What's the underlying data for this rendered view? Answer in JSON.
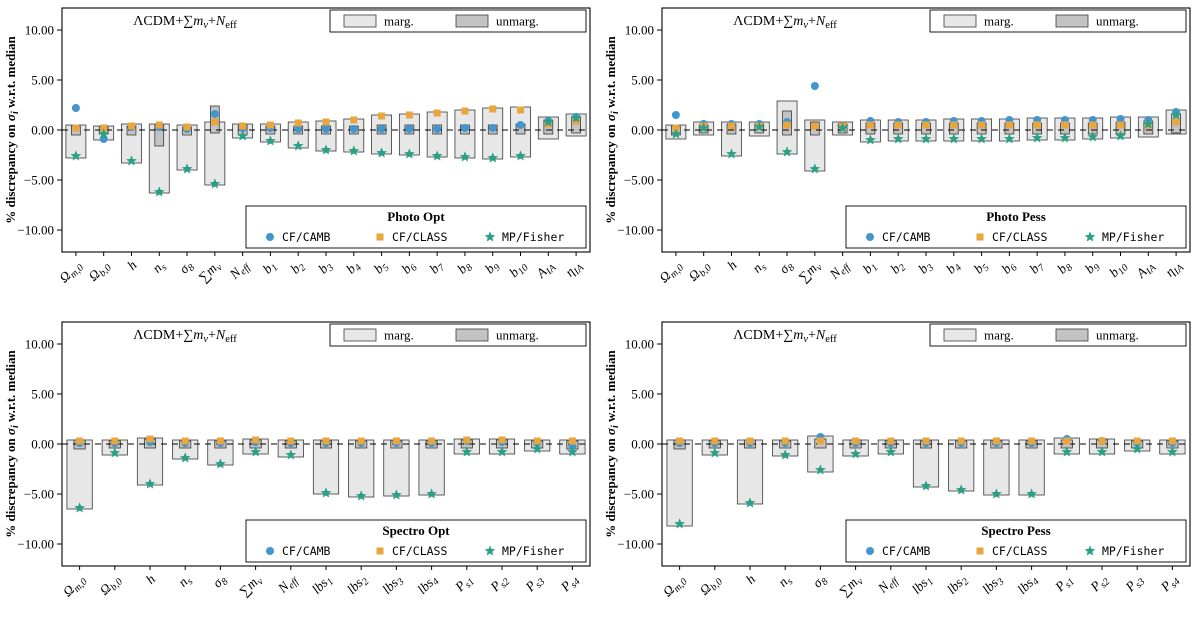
{
  "figure": {
    "background": "#ffffff",
    "model_label_segments": [
      {
        "t": "ΛCDM+"
      },
      {
        "t": "∑"
      },
      {
        "t": "m",
        "it": true
      },
      {
        "t": "ν",
        "sub": true,
        "it": true
      },
      {
        "t": "+"
      },
      {
        "t": "N",
        "it": true
      },
      {
        "t": "eff",
        "sub": true
      }
    ],
    "ylabel_segments": [
      {
        "t": "% discrepancy on "
      },
      {
        "t": "σ",
        "it": true
      },
      {
        "t": "i",
        "sub": true,
        "it": true
      },
      {
        "t": " w.r.t. median"
      }
    ],
    "legend_marg": "marg.",
    "legend_unmarg": "unmarg.",
    "series_legend": [
      {
        "name": "CF/CAMB",
        "marker": "circle",
        "color": "#4295cd"
      },
      {
        "name": "CF/CLASS",
        "marker": "square",
        "color": "#e9a63c"
      },
      {
        "name": "MP/Fisher",
        "marker": "star",
        "color": "#2aa187"
      }
    ],
    "colors": {
      "marg": "#e7e7e7",
      "unmarg": "#c3c3c3",
      "edge": "#3a3a3a",
      "axis": "#000000"
    }
  },
  "chart_data": [
    {
      "type": "bar",
      "title": "Photo Opt",
      "ylim": [
        -12.2,
        12.2
      ],
      "yticks": [
        10,
        5,
        0,
        -5,
        -10
      ],
      "categories": [
        "Ω_m,0",
        "Ω_b,0",
        "h",
        "n_s",
        "σ_8",
        "∑m_ν",
        "N_eff",
        "b_1",
        "b_2",
        "b_3",
        "b_4",
        "b_5",
        "b_6",
        "b_7",
        "b_8",
        "b_9",
        "b_10",
        "A_IA",
        "η_IA"
      ],
      "marg": [
        [
          -2.8,
          0.5
        ],
        [
          -1.0,
          0.4
        ],
        [
          -3.3,
          0.6
        ],
        [
          -6.3,
          0.6
        ],
        [
          -4.0,
          0.5
        ],
        [
          -5.5,
          0.8
        ],
        [
          -0.8,
          0.6
        ],
        [
          -1.2,
          0.6
        ],
        [
          -1.8,
          0.8
        ],
        [
          -2.1,
          0.9
        ],
        [
          -2.2,
          1.1
        ],
        [
          -2.4,
          1.5
        ],
        [
          -2.5,
          1.6
        ],
        [
          -2.7,
          1.8
        ],
        [
          -2.8,
          2.0
        ],
        [
          -2.9,
          2.2
        ],
        [
          -2.7,
          2.3
        ],
        [
          -0.9,
          1.3
        ],
        [
          -0.6,
          1.6
        ]
      ],
      "unmarg": [
        [
          -0.5,
          0.4
        ],
        [
          -0.4,
          0.3
        ],
        [
          -0.5,
          0.4
        ],
        [
          -1.6,
          0.5
        ],
        [
          -0.5,
          0.3
        ],
        [
          -0.3,
          2.4
        ],
        [
          -0.5,
          0.5
        ],
        [
          -0.4,
          0.4
        ],
        [
          -0.4,
          0.4
        ],
        [
          -0.4,
          0.4
        ],
        [
          -0.4,
          0.4
        ],
        [
          -0.4,
          0.5
        ],
        [
          -0.4,
          0.5
        ],
        [
          -0.4,
          0.5
        ],
        [
          -0.4,
          0.5
        ],
        [
          -0.4,
          0.5
        ],
        [
          -0.4,
          0.6
        ],
        [
          -0.4,
          1.0
        ],
        [
          -0.3,
          1.3
        ]
      ],
      "series": [
        {
          "name": "CF/CAMB",
          "values": [
            2.2,
            -0.9,
            0.3,
            0.3,
            0.1,
            1.6,
            0.2,
            0.2,
            0.1,
            0.1,
            0.1,
            0.1,
            0.1,
            0.1,
            0.2,
            0.2,
            0.5,
            0.9,
            1.3
          ]
        },
        {
          "name": "CF/CLASS",
          "values": [
            0.2,
            0.2,
            0.4,
            0.5,
            0.3,
            0.8,
            0.4,
            0.5,
            0.7,
            0.8,
            1.0,
            1.4,
            1.5,
            1.7,
            1.9,
            2.1,
            2.0,
            0.6,
            0.9
          ]
        },
        {
          "name": "MP/Fisher",
          "values": [
            -2.6,
            -0.4,
            -3.1,
            -6.2,
            -3.9,
            -5.4,
            -0.6,
            -1.1,
            -1.6,
            -2.0,
            -2.1,
            -2.3,
            -2.4,
            -2.6,
            -2.7,
            -2.8,
            -2.6,
            0.8,
            1.2
          ]
        }
      ]
    },
    {
      "type": "bar",
      "title": "Photo Pess",
      "ylim": [
        -12.2,
        12.2
      ],
      "yticks": [
        10,
        5,
        0,
        -5,
        -10
      ],
      "categories": [
        "Ω_m,0",
        "Ω_b,0",
        "h",
        "n_s",
        "σ_8",
        "∑m_ν",
        "N_eff",
        "b_1",
        "b_2",
        "b_3",
        "b_4",
        "b_5",
        "b_6",
        "b_7",
        "b_8",
        "b_9",
        "b_10",
        "A_IA",
        "η_IA"
      ],
      "marg": [
        [
          -0.9,
          0.5
        ],
        [
          -0.5,
          0.8
        ],
        [
          -2.6,
          0.8
        ],
        [
          -0.6,
          0.8
        ],
        [
          -2.4,
          2.9
        ],
        [
          -4.1,
          1.0
        ],
        [
          -0.5,
          0.8
        ],
        [
          -1.2,
          1.0
        ],
        [
          -1.1,
          1.0
        ],
        [
          -1.1,
          1.0
        ],
        [
          -1.1,
          1.1
        ],
        [
          -1.1,
          1.1
        ],
        [
          -1.1,
          1.1
        ],
        [
          -1.0,
          1.2
        ],
        [
          -1.0,
          1.2
        ],
        [
          -0.9,
          1.2
        ],
        [
          -0.8,
          1.3
        ],
        [
          -0.7,
          1.3
        ],
        [
          -0.4,
          2.0
        ]
      ],
      "unmarg": [
        [
          -0.5,
          0.4
        ],
        [
          -0.3,
          0.5
        ],
        [
          -0.4,
          0.6
        ],
        [
          -0.3,
          0.6
        ],
        [
          -0.5,
          1.9
        ],
        [
          -0.5,
          0.8
        ],
        [
          -0.3,
          0.6
        ],
        [
          -0.4,
          0.7
        ],
        [
          -0.4,
          0.7
        ],
        [
          -0.4,
          0.7
        ],
        [
          -0.4,
          0.7
        ],
        [
          -0.4,
          0.7
        ],
        [
          -0.4,
          0.7
        ],
        [
          -0.4,
          0.7
        ],
        [
          -0.4,
          0.7
        ],
        [
          -0.4,
          0.7
        ],
        [
          -0.4,
          0.8
        ],
        [
          -0.4,
          0.9
        ],
        [
          -0.3,
          1.6
        ]
      ],
      "series": [
        {
          "name": "CF/CAMB",
          "values": [
            1.5,
            0.6,
            0.6,
            0.6,
            0.8,
            4.4,
            0.4,
            0.9,
            0.8,
            0.8,
            0.9,
            0.9,
            1.0,
            1.0,
            1.0,
            1.0,
            1.1,
            1.0,
            1.8
          ]
        },
        {
          "name": "CF/CLASS",
          "values": [
            0.2,
            0.4,
            0.4,
            0.4,
            0.5,
            0.4,
            0.4,
            0.5,
            0.5,
            0.5,
            0.5,
            0.5,
            0.5,
            0.5,
            0.5,
            0.5,
            0.5,
            0.5,
            0.8
          ]
        },
        {
          "name": "MP/Fisher",
          "values": [
            -0.4,
            0.2,
            -2.4,
            0.3,
            -2.2,
            -3.9,
            0.2,
            -1.0,
            -0.9,
            -0.9,
            -0.9,
            -0.9,
            -0.9,
            -0.8,
            -0.8,
            -0.7,
            -0.6,
            0.6,
            1.5
          ]
        }
      ]
    },
    {
      "type": "bar",
      "title": "Spectro Opt",
      "ylim": [
        -12.2,
        12.2
      ],
      "yticks": [
        10,
        5,
        0,
        -5,
        -10
      ],
      "categories": [
        "Ω_m,0",
        "Ω_b,0",
        "h",
        "n_s",
        "σ_8",
        "∑m_ν",
        "N_eff",
        "lbs_1",
        "lbs_2",
        "lbs_3",
        "lbs_4",
        "P_s1",
        "P_s2",
        "P_s3",
        "P_s4"
      ],
      "marg": [
        [
          -6.5,
          0.4
        ],
        [
          -1.1,
          0.4
        ],
        [
          -4.1,
          0.6
        ],
        [
          -1.5,
          0.4
        ],
        [
          -2.1,
          0.4
        ],
        [
          -1.0,
          0.5
        ],
        [
          -1.3,
          0.4
        ],
        [
          -5.0,
          0.4
        ],
        [
          -5.3,
          0.4
        ],
        [
          -5.2,
          0.4
        ],
        [
          -5.1,
          0.4
        ],
        [
          -1.0,
          0.5
        ],
        [
          -1.0,
          0.5
        ],
        [
          -0.7,
          0.4
        ],
        [
          -1.0,
          0.4
        ]
      ],
      "unmarg": [
        [
          -0.5,
          0.4
        ],
        [
          -0.4,
          0.3
        ],
        [
          -0.4,
          0.5
        ],
        [
          -0.4,
          0.3
        ],
        [
          -0.4,
          0.3
        ],
        [
          -0.4,
          0.4
        ],
        [
          -0.4,
          0.3
        ],
        [
          -0.4,
          0.3
        ],
        [
          -0.4,
          0.3
        ],
        [
          -0.4,
          0.3
        ],
        [
          -0.4,
          0.3
        ],
        [
          -0.4,
          0.4
        ],
        [
          -0.4,
          0.4
        ],
        [
          -0.4,
          0.3
        ],
        [
          -0.5,
          0.3
        ]
      ],
      "series": [
        {
          "name": "CF/CAMB",
          "values": [
            0.1,
            0.1,
            0.2,
            0.1,
            0.1,
            0.2,
            0.1,
            0.1,
            0.1,
            0.1,
            0.1,
            0.3,
            0.2,
            0.1,
            -0.2
          ]
        },
        {
          "name": "CF/CLASS",
          "values": [
            0.3,
            0.3,
            0.5,
            0.3,
            0.3,
            0.4,
            0.3,
            0.3,
            0.3,
            0.3,
            0.3,
            0.4,
            0.4,
            0.3,
            0.3
          ]
        },
        {
          "name": "MP/Fisher",
          "values": [
            -6.4,
            -0.9,
            -4.0,
            -1.4,
            -2.0,
            -0.8,
            -1.1,
            -4.9,
            -5.2,
            -5.1,
            -5.0,
            -0.8,
            -0.8,
            -0.5,
            -0.8
          ]
        }
      ]
    },
    {
      "type": "bar",
      "title": "Spectro Pess",
      "ylim": [
        -12.2,
        12.2
      ],
      "yticks": [
        10,
        5,
        0,
        -5,
        -10
      ],
      "categories": [
        "Ω_m,0",
        "Ω_b,0",
        "h",
        "n_s",
        "σ_8",
        "∑m_ν",
        "N_eff",
        "lbs_1",
        "lbs_2",
        "lbs_3",
        "lbs_4",
        "P_s1",
        "P_s2",
        "P_s3",
        "P_s4"
      ],
      "marg": [
        [
          -8.2,
          0.4
        ],
        [
          -1.1,
          0.4
        ],
        [
          -6.0,
          0.4
        ],
        [
          -1.2,
          0.4
        ],
        [
          -2.8,
          0.8
        ],
        [
          -1.2,
          0.4
        ],
        [
          -1.0,
          0.4
        ],
        [
          -4.3,
          0.4
        ],
        [
          -4.7,
          0.4
        ],
        [
          -5.1,
          0.4
        ],
        [
          -5.1,
          0.4
        ],
        [
          -1.0,
          0.6
        ],
        [
          -1.0,
          0.5
        ],
        [
          -0.7,
          0.4
        ],
        [
          -1.0,
          0.4
        ]
      ],
      "unmarg": [
        [
          -0.5,
          0.4
        ],
        [
          -0.4,
          0.3
        ],
        [
          -0.4,
          0.4
        ],
        [
          -0.4,
          0.3
        ],
        [
          -0.4,
          0.5
        ],
        [
          -0.4,
          0.4
        ],
        [
          -0.4,
          0.3
        ],
        [
          -0.4,
          0.3
        ],
        [
          -0.4,
          0.3
        ],
        [
          -0.4,
          0.3
        ],
        [
          -0.4,
          0.3
        ],
        [
          -0.4,
          0.4
        ],
        [
          -0.4,
          0.4
        ],
        [
          -0.4,
          0.3
        ],
        [
          -0.4,
          0.3
        ]
      ],
      "series": [
        {
          "name": "CF/CAMB",
          "values": [
            0.1,
            0.1,
            0.1,
            0.1,
            0.7,
            0.1,
            0.1,
            0.1,
            0.1,
            0.1,
            0.1,
            0.5,
            0.3,
            0.1,
            0.1
          ]
        },
        {
          "name": "CF/CLASS",
          "values": [
            0.3,
            0.3,
            0.3,
            0.3,
            0.3,
            0.3,
            0.3,
            0.3,
            0.3,
            0.3,
            0.3,
            0.3,
            0.3,
            0.3,
            0.3
          ]
        },
        {
          "name": "MP/Fisher",
          "values": [
            -8.0,
            -0.9,
            -5.9,
            -1.1,
            -2.6,
            -1.0,
            -0.8,
            -4.2,
            -4.6,
            -5.0,
            -5.0,
            -0.8,
            -0.8,
            -0.5,
            -0.8
          ]
        }
      ]
    }
  ]
}
